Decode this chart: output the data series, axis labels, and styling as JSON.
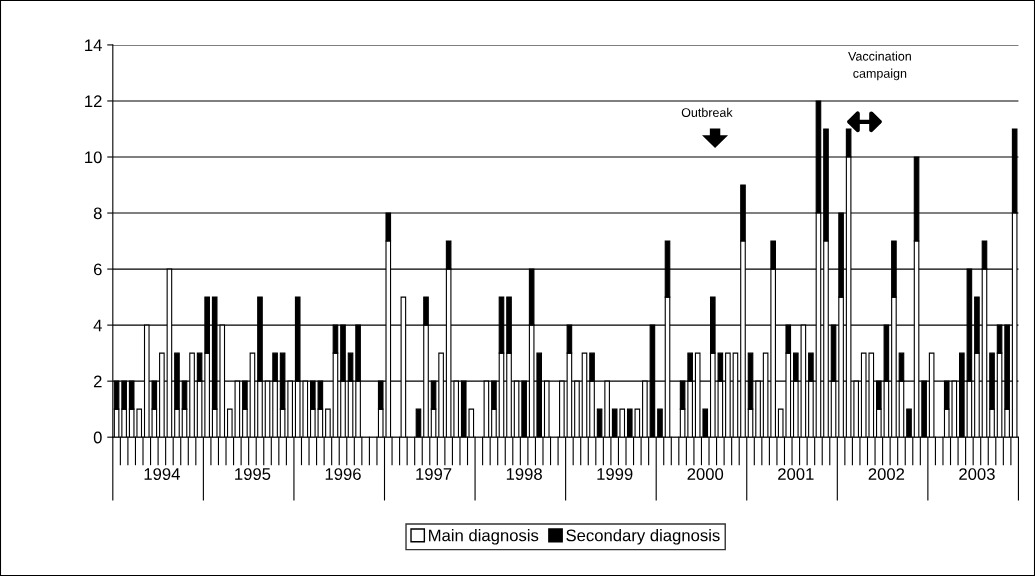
{
  "chart_data": {
    "type": "bar",
    "stacked": true,
    "categories": [
      null,
      null,
      null,
      null,
      null,
      null,
      "1994",
      null,
      null,
      null,
      null,
      null,
      null,
      null,
      null,
      null,
      null,
      null,
      "1995",
      null,
      null,
      null,
      null,
      null,
      null,
      null,
      null,
      null,
      null,
      null,
      "1996",
      null,
      null,
      null,
      null,
      null,
      null,
      null,
      null,
      null,
      null,
      null,
      "1997",
      null,
      null,
      null,
      null,
      null,
      null,
      null,
      null,
      null,
      null,
      null,
      "1998",
      null,
      null,
      null,
      null,
      null,
      null,
      null,
      null,
      null,
      null,
      null,
      "1999",
      null,
      null,
      null,
      null,
      null,
      null,
      null,
      null,
      null,
      null,
      null,
      "2000",
      null,
      null,
      null,
      null,
      null,
      null,
      null,
      null,
      null,
      null,
      null,
      "2001",
      null,
      null,
      null,
      null,
      null,
      null,
      null,
      null,
      null,
      null,
      null,
      "2002",
      null,
      null,
      null,
      null,
      null,
      null,
      null,
      null,
      null,
      null,
      null,
      "2003",
      null,
      null,
      null,
      null,
      null
    ],
    "series": [
      {
        "name": "Main diagnosis",
        "color": "#ffffff",
        "values": [
          1,
          1,
          1,
          1,
          4,
          1,
          3,
          6,
          1,
          1,
          3,
          2,
          3,
          1,
          4,
          1,
          2,
          1,
          3,
          2,
          2,
          2,
          1,
          2,
          2,
          2,
          1,
          1,
          1,
          3,
          2,
          2,
          2,
          0,
          0,
          1,
          7,
          0,
          5,
          0,
          0,
          4,
          1,
          3,
          6,
          2,
          0,
          1,
          0,
          2,
          1,
          3,
          3,
          2,
          0,
          4,
          0,
          2,
          0,
          2,
          3,
          2,
          3,
          2,
          0,
          2,
          0,
          1,
          0,
          1,
          2,
          0,
          0,
          5,
          0,
          1,
          2,
          3,
          0,
          3,
          2,
          3,
          3,
          7,
          1,
          2,
          3,
          6,
          1,
          3,
          2,
          4,
          2,
          8,
          7,
          2,
          5,
          10,
          2,
          3,
          3,
          1,
          2,
          5,
          2,
          0,
          7,
          0,
          3,
          0,
          1,
          2,
          0,
          2,
          3,
          6,
          1,
          3,
          1,
          8
        ]
      },
      {
        "name": "Secondary diagnosis",
        "color": "#000000",
        "values": [
          1,
          1,
          1,
          0,
          0,
          1,
          0,
          0,
          2,
          1,
          0,
          1,
          2,
          4,
          0,
          0,
          0,
          1,
          0,
          3,
          0,
          1,
          2,
          0,
          3,
          0,
          1,
          1,
          0,
          1,
          2,
          1,
          2,
          0,
          0,
          1,
          1,
          0,
          0,
          0,
          1,
          1,
          1,
          0,
          1,
          0,
          2,
          0,
          0,
          0,
          1,
          2,
          2,
          0,
          2,
          2,
          3,
          0,
          0,
          0,
          1,
          0,
          0,
          1,
          1,
          0,
          1,
          0,
          1,
          0,
          0,
          4,
          1,
          2,
          0,
          1,
          1,
          0,
          1,
          2,
          1,
          0,
          0,
          2,
          2,
          0,
          0,
          1,
          0,
          1,
          1,
          0,
          1,
          4,
          4,
          2,
          3,
          1,
          0,
          0,
          0,
          1,
          2,
          2,
          1,
          1,
          3,
          2,
          0,
          0,
          1,
          0,
          3,
          4,
          2,
          1,
          2,
          1,
          3,
          3
        ]
      }
    ],
    "ylim": [
      0,
      14
    ],
    "yticks": [
      0,
      2,
      4,
      6,
      8,
      10,
      12,
      14
    ],
    "grid": "y",
    "legend": "bottom",
    "annotations": [
      "Outbreak",
      "Vaccination\ncampaign"
    ]
  }
}
